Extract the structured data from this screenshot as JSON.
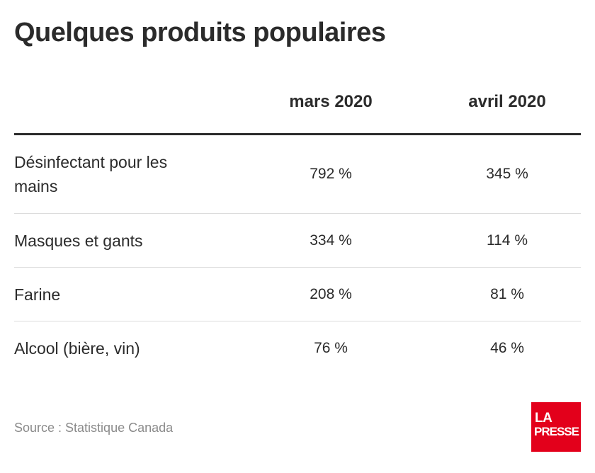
{
  "title": "Quelques produits populaires",
  "chart_data": {
    "type": "table",
    "title": "Quelques produits populaires",
    "columns": [
      "",
      "mars 2020",
      "avril 2020"
    ],
    "rows": [
      {
        "label": "Désinfectant pour les mains",
        "values": [
          "792 %",
          "345 %"
        ]
      },
      {
        "label": "Masques et gants",
        "values": [
          "334 %",
          "114 %"
        ]
      },
      {
        "label": "Farine",
        "values": [
          "208 %",
          "81 %"
        ]
      },
      {
        "label": "Alcool (bière, vin)",
        "values": [
          "76 %",
          "46 %"
        ]
      }
    ]
  },
  "source": "Source : Statistique Canada",
  "logo": {
    "line1": "LA",
    "line2": "PRESSE",
    "color": "#e3001b"
  }
}
